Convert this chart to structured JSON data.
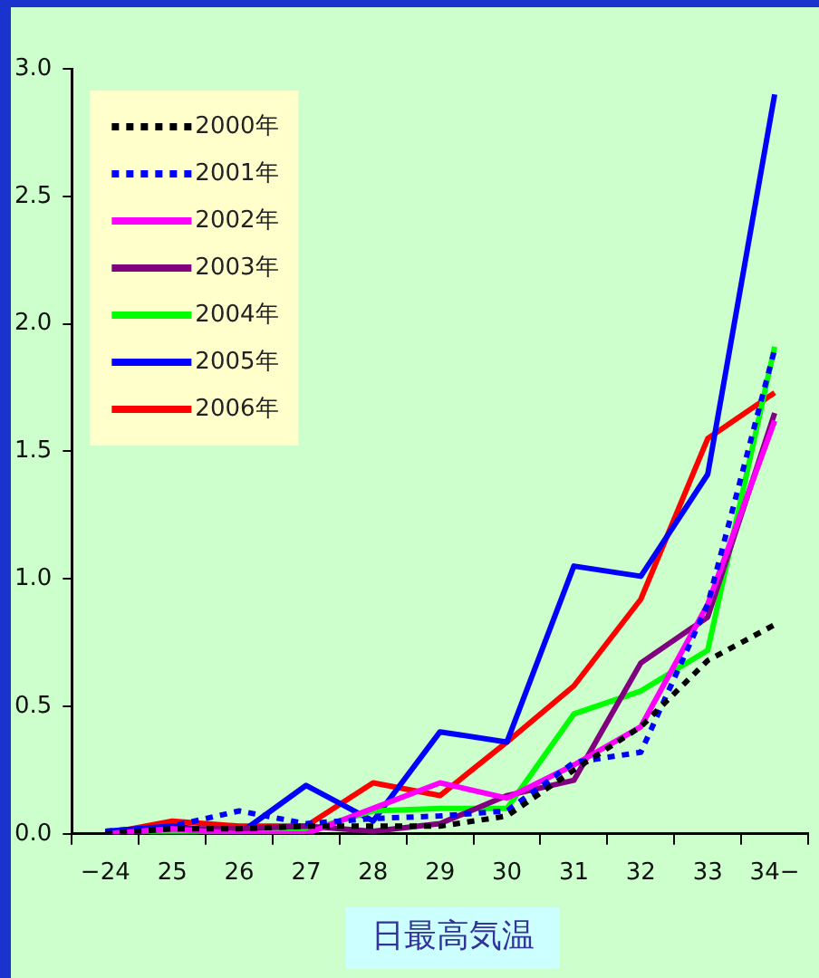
{
  "chart_data": {
    "type": "line",
    "xlabel": "日最高気温",
    "categories": [
      "−24",
      "25",
      "26",
      "27",
      "28",
      "29",
      "30",
      "31",
      "32",
      "33",
      "34−"
    ],
    "ylim": [
      0,
      3
    ],
    "yticks": [
      {
        "value": 0,
        "label": "0.0"
      },
      {
        "value": 0.5,
        "label": "0.5"
      },
      {
        "value": 1,
        "label": "1.0"
      },
      {
        "value": 1.5,
        "label": "1.5"
      },
      {
        "value": 2,
        "label": "2.0"
      },
      {
        "value": 2.5,
        "label": "2.5"
      },
      {
        "value": 3,
        "label": "3.0"
      }
    ],
    "grid": false,
    "legend": "top left",
    "marker": "none",
    "series": [
      {
        "name": "2000年",
        "color": "#000000",
        "line_style": "dotted",
        "values": [
          0,
          0.02,
          0.02,
          0.03,
          0.03,
          0.03,
          0.07,
          0.25,
          0.42,
          0.68,
          0.82
        ]
      },
      {
        "name": "2001年",
        "color": "#0000ff",
        "line_style": "dotted",
        "values": [
          0.01,
          0.03,
          0.09,
          0.04,
          0.06,
          0.07,
          0.09,
          0.28,
          0.32,
          0.9,
          1.9
        ]
      },
      {
        "name": "2002年",
        "color": "#ff00ff",
        "line_style": "solid",
        "values": [
          0,
          0.02,
          0,
          0,
          0.1,
          0.2,
          0.14,
          0.27,
          0.42,
          0.9,
          1.62
        ]
      },
      {
        "name": "2003年",
        "color": "#800080",
        "line_style": "solid",
        "values": [
          0,
          0.02,
          0.02,
          0.03,
          0.01,
          0.04,
          0.15,
          0.21,
          0.67,
          0.85,
          1.65
        ]
      },
      {
        "name": "2004年",
        "color": "#00ff00",
        "line_style": "solid",
        "values": [
          0,
          0.01,
          0.01,
          0.01,
          0.09,
          0.1,
          0.1,
          0.47,
          0.56,
          0.72,
          1.91
        ]
      },
      {
        "name": "2005年",
        "color": "#0000ff",
        "line_style": "solid",
        "values": [
          0.01,
          0.03,
          0,
          0.19,
          0.05,
          0.4,
          0.36,
          1.05,
          1.01,
          1.41,
          2.9
        ]
      },
      {
        "name": "2006年",
        "color": "#ff0000",
        "line_style": "solid",
        "values": [
          0,
          0.05,
          0.03,
          0.03,
          0.2,
          0.15,
          0.36,
          0.58,
          0.92,
          1.55,
          1.73
        ]
      }
    ]
  }
}
